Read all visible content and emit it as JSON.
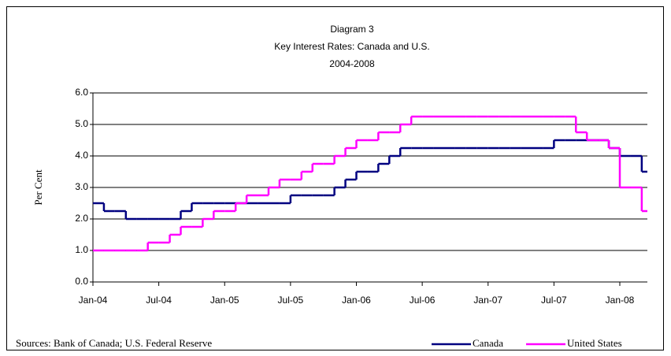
{
  "chart_data": {
    "type": "step",
    "title": "Diagram 3",
    "subtitle": "Key Interest Rates: Canada and U.S.",
    "period": "2004-2008",
    "y_label": "Per Cent",
    "source": "Sources: Bank of Canada; U.S. Federal Reserve",
    "categories": [
      "Jan-04",
      null,
      null,
      null,
      null,
      null,
      "Jul-04",
      null,
      null,
      null,
      null,
      null,
      "Jan-05",
      null,
      null,
      null,
      null,
      null,
      "Jul-05",
      null,
      null,
      null,
      null,
      null,
      "Jan-06",
      null,
      null,
      null,
      null,
      null,
      "Jul-06",
      null,
      null,
      null,
      null,
      null,
      "Jan-07",
      null,
      null,
      null,
      null,
      null,
      "Jul-07",
      null,
      null,
      null,
      null,
      null,
      "Jan-08",
      null,
      null
    ],
    "series": [
      {
        "name": "Canada",
        "color": "#000080",
        "values": [
          2.5,
          2.25,
          2.25,
          2.0,
          2.0,
          2.0,
          2.0,
          2.0,
          2.25,
          2.5,
          2.5,
          2.5,
          2.5,
          2.5,
          2.5,
          2.5,
          2.5,
          2.5,
          2.75,
          2.75,
          2.75,
          2.75,
          3.0,
          3.25,
          3.5,
          3.5,
          3.75,
          4.0,
          4.25,
          4.25,
          4.25,
          4.25,
          4.25,
          4.25,
          4.25,
          4.25,
          4.25,
          4.25,
          4.25,
          4.25,
          4.25,
          4.25,
          4.5,
          4.5,
          4.5,
          4.5,
          4.5,
          4.25,
          4.0,
          4.0,
          3.5
        ]
      },
      {
        "name": "United States",
        "color": "#ff00ff",
        "values": [
          1.0,
          1.0,
          1.0,
          1.0,
          1.0,
          1.25,
          1.25,
          1.5,
          1.75,
          1.75,
          2.0,
          2.25,
          2.25,
          2.5,
          2.75,
          2.75,
          3.0,
          3.25,
          3.25,
          3.5,
          3.75,
          3.75,
          4.0,
          4.25,
          4.5,
          4.5,
          4.75,
          4.75,
          5.0,
          5.25,
          5.25,
          5.25,
          5.25,
          5.25,
          5.25,
          5.25,
          5.25,
          5.25,
          5.25,
          5.25,
          5.25,
          5.25,
          5.25,
          5.25,
          4.75,
          4.5,
          4.5,
          4.25,
          3.0,
          3.0,
          2.25
        ]
      }
    ],
    "ylim": [
      0,
      6
    ],
    "yticks": [
      {
        "value": 0,
        "label": "0.0"
      },
      {
        "value": 1,
        "label": "1.0"
      },
      {
        "value": 2,
        "label": "2.0"
      },
      {
        "value": 3,
        "label": "3.0"
      },
      {
        "value": 4,
        "label": "4.0"
      },
      {
        "value": 5,
        "label": "5.0"
      },
      {
        "value": 6,
        "label": "6.0"
      }
    ],
    "grid": true,
    "legend": "bottom-right"
  }
}
